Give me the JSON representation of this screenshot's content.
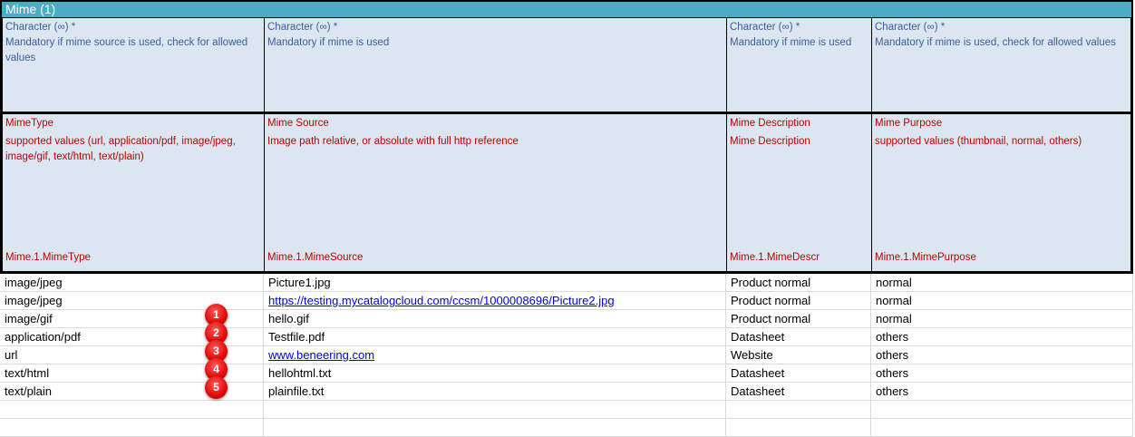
{
  "title": "Mime (1)",
  "format_row": [
    {
      "type": "Character (∞) *",
      "note": "Mandatory if mime source is used, check for allowed values"
    },
    {
      "type": "Character (∞) *",
      "note": "Mandatory if mime is used"
    },
    {
      "type": "Character (∞) *",
      "note": "Mandatory if mime is used"
    },
    {
      "type": "Character (∞) *",
      "note": "Mandatory if mime is used, check for allowed values"
    }
  ],
  "field_row": [
    {
      "name": "MimeType",
      "desc": "supported values (url, application/pdf, image/jpeg, image/gif, text/html, text/plain)",
      "key": "Mime.1.MimeType"
    },
    {
      "name": "Mime Source",
      "desc": "Image path relative, or absolute with full http reference",
      "key": "Mime.1.MimeSource"
    },
    {
      "name": "Mime Description",
      "desc": "Mime Description",
      "key": "Mime.1.MimeDescr"
    },
    {
      "name": "Mime Purpose",
      "desc": "supported values (thumbnail, normal, others)",
      "key": "Mime.1.MimePurpose"
    }
  ],
  "rows": [
    {
      "type": "image/jpeg",
      "source": "Picture1.jpg",
      "link": false,
      "descr": "Product normal",
      "purpose": "normal",
      "badge": ""
    },
    {
      "type": "image/jpeg",
      "source": "https://testing.mycatalogcloud.com/ccsm/1000008696/Picture2.jpg",
      "link": true,
      "descr": "Product normal",
      "purpose": "normal",
      "badge": ""
    },
    {
      "type": "image/gif",
      "source": "hello.gif",
      "link": false,
      "descr": "Product normal",
      "purpose": "normal",
      "badge": "1"
    },
    {
      "type": "application/pdf",
      "source": "Testfile.pdf",
      "link": false,
      "descr": "Datasheet",
      "purpose": "others",
      "badge": "2"
    },
    {
      "type": "url",
      "source": "www.beneering.com",
      "link": true,
      "descr": "Website",
      "purpose": "others",
      "badge": "3"
    },
    {
      "type": "text/html",
      "source": "hellohtml.txt",
      "link": false,
      "descr": "Datasheet",
      "purpose": "others",
      "badge": "4"
    },
    {
      "type": "text/plain",
      "source": "plainfile.txt",
      "link": false,
      "descr": "Datasheet",
      "purpose": "others",
      "badge": "5"
    }
  ],
  "colors": {
    "title_bar": "#4bacc6",
    "header_bg": "#dce6f0",
    "format_text": "#3b5f9a",
    "field_text": "#c00000",
    "link": "#0000ee",
    "badge": "#e00000"
  }
}
